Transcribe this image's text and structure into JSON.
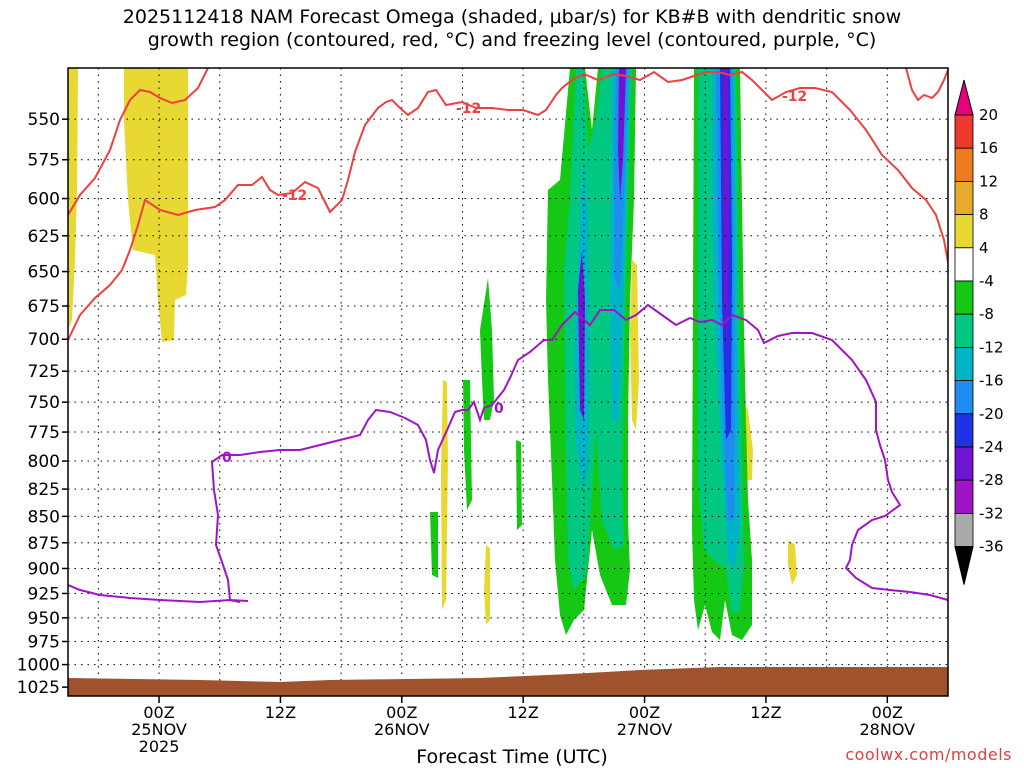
{
  "title": {
    "line1": "2025112418 NAM Forecast Omega (shaded, μbar/s) for KB#B with dendritic snow",
    "line2": "growth region (contoured, red, °C) and freezing level (contoured, purple, °C)"
  },
  "credit": "coolwx.com/models",
  "chart_data": {
    "type": "heatmap",
    "xlabel": "Forecast Time (UTC)",
    "ylabel": "",
    "x_range_hours": [
      -3,
      84
    ],
    "y_range_hPa": [
      1035,
      520
    ],
    "y_scale": "log-pressure",
    "grid": true,
    "y_ticks": [
      550,
      575,
      600,
      625,
      650,
      675,
      700,
      725,
      750,
      775,
      800,
      825,
      850,
      875,
      900,
      925,
      950,
      975,
      1000,
      1025
    ],
    "x_ticks": [
      {
        "hour": 6,
        "lines": [
          "00Z",
          "25NOV",
          "2025"
        ]
      },
      {
        "hour": 18,
        "lines": [
          "12Z"
        ]
      },
      {
        "hour": 30,
        "lines": [
          "00Z",
          "26NOV"
        ]
      },
      {
        "hour": 42,
        "lines": [
          "12Z"
        ]
      },
      {
        "hour": 54,
        "lines": [
          "00Z",
          "27NOV"
        ]
      },
      {
        "hour": 66,
        "lines": [
          "12Z"
        ]
      },
      {
        "hour": 78,
        "lines": [
          "00Z",
          "28NOV"
        ]
      }
    ],
    "colorbar": {
      "labels": [
        "20",
        "16",
        "12",
        "8",
        "4",
        "-4",
        "-8",
        "-12",
        "-16",
        "-20",
        "-24",
        "-28",
        "-32",
        "-36"
      ],
      "colors": [
        "#e8007f",
        "#ee3a2e",
        "#f07a1e",
        "#e8aa2a",
        "#e8d832",
        "#ffffff",
        "#14c814",
        "#00c882",
        "#00b4c8",
        "#1e8cf0",
        "#1e32e6",
        "#6e14d2",
        "#a014c8",
        "#aaaaaa",
        "#000000"
      ]
    },
    "contours": {
      "dendritic_label": "-12",
      "freezing_label": "0"
    }
  }
}
